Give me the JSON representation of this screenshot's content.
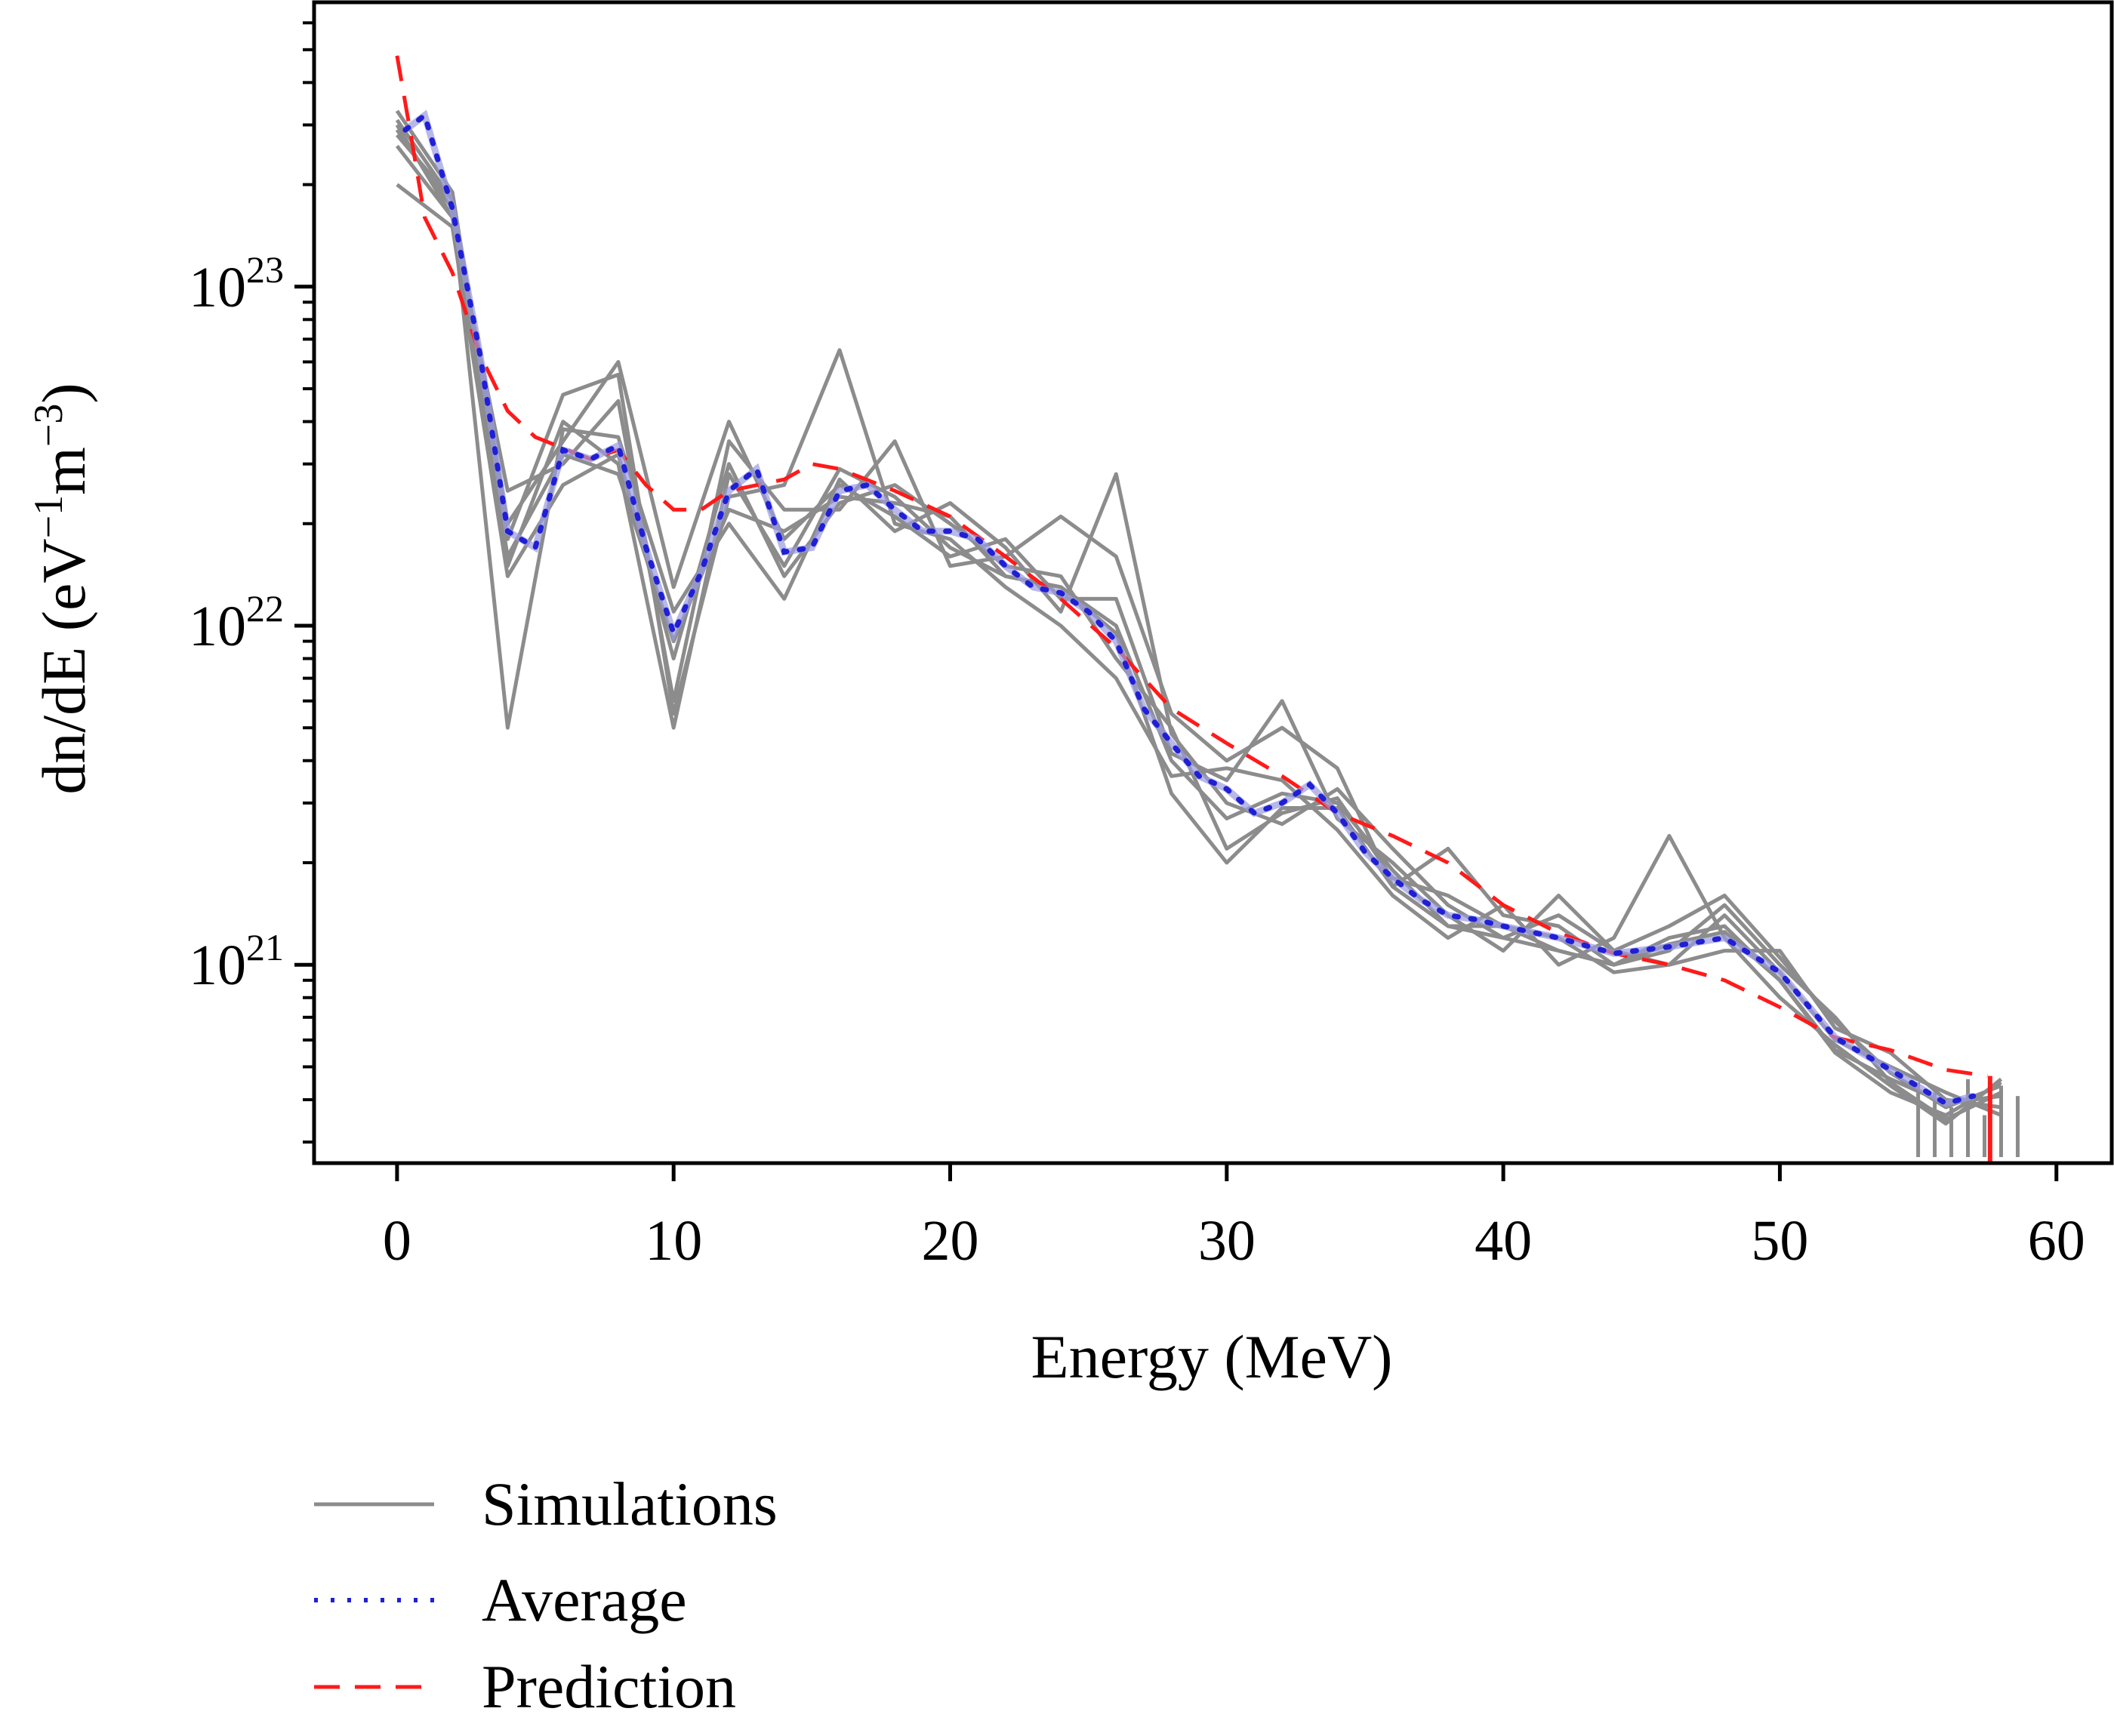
{
  "chart_data": {
    "type": "line",
    "title": "",
    "xlabel": "Energy (MeV)",
    "ylabel": "dn/dE (eV⁻¹m⁻³)",
    "ylabel_parts": {
      "main": "dn/dE (eV",
      "sup1": "−1",
      "mid": "m",
      "sup2": "−3",
      "end": ")"
    },
    "xlim": [
      -3,
      62
    ],
    "ylim": [
      2.6e+20,
      6.9e+23
    ],
    "yscale": "log",
    "xticks": [
      0,
      10,
      20,
      30,
      40,
      50,
      60
    ],
    "xtick_labels": [
      "0",
      "10",
      "20",
      "30",
      "40",
      "50",
      "60"
    ],
    "yticks": [
      1e+21,
      1e+22,
      1e+23
    ],
    "ytick_labels": [
      {
        "base": "10",
        "exp": "21"
      },
      {
        "base": "10",
        "exp": "22"
      },
      {
        "base": "10",
        "exp": "23"
      }
    ],
    "grid": false,
    "legend_position": "bottom-left, below plot",
    "colors": {
      "simulations": "#8c8c8c",
      "average": "#1f1fd6",
      "prediction": "#ff1a1a"
    },
    "simulations": {
      "name": "Simulations",
      "x": [
        0,
        2,
        4,
        6,
        8,
        10,
        12,
        14,
        16,
        18,
        20,
        22,
        24,
        26,
        28,
        30,
        32,
        34,
        36,
        38,
        40,
        42,
        44,
        46,
        48,
        50,
        52,
        54,
        56,
        58
      ],
      "series": [
        [
          3.1e+23,
          1.8e+23,
          1.5e+22,
          4e+22,
          3e+22,
          5e+21,
          2.8e+22,
          1.5e+22,
          2.9e+22,
          2.4e+22,
          1.7e+22,
          1.4e+22,
          1.3e+22,
          1e+22,
          4e+21,
          2.7e+21,
          3.2e+21,
          3e+21,
          1.9e+21,
          1.3e+21,
          1.2e+21,
          1.1e+21,
          1e+21,
          1.2e+21,
          1.3e+21,
          9e+20,
          5.5e+20,
          4.2e+20,
          3.6e+20,
          4.5e+20
        ],
        [
          2.6e+23,
          1.6e+23,
          2.5e+22,
          3e+22,
          4.6e+22,
          6e+21,
          3.5e+22,
          2.2e+22,
          2.2e+22,
          3.5e+22,
          1.5e+22,
          1.6e+22,
          2.1e+22,
          1.6e+22,
          5.5e+21,
          4e+21,
          5e+21,
          3.8e+21,
          1.7e+21,
          2.2e+21,
          1.4e+21,
          1.3e+21,
          1e+21,
          1.1e+21,
          1.5e+21,
          1e+21,
          7e+20,
          4.5e+20,
          3.5e+20,
          4.2e+20
        ],
        [
          2.9e+23,
          1.7e+23,
          5e+21,
          3.8e+22,
          3.6e+22,
          1.1e+22,
          2e+22,
          1.2e+22,
          2.7e+22,
          1.9e+22,
          2.3e+22,
          1.7e+22,
          1.1e+22,
          2.8e+22,
          4.8e+21,
          3e+21,
          2.6e+21,
          3.3e+21,
          2.2e+21,
          1.5e+21,
          1.2e+21,
          1.4e+21,
          1.1e+21,
          1e+21,
          1.1e+21,
          1.1e+21,
          6.5e+20,
          5.5e+20,
          4e+20,
          3.8e+20
        ],
        [
          3.3e+23,
          1.9e+23,
          1.8e+22,
          4.8e+22,
          5.5e+22,
          5.5e+21,
          2.4e+22,
          2.6e+22,
          6.5e+22,
          2e+22,
          1.8e+22,
          1.3e+22,
          1e+22,
          7e+21,
          3.6e+21,
          3.8e+21,
          3.5e+21,
          2.5e+21,
          1.6e+21,
          1.2e+21,
          1.5e+21,
          1e+21,
          1.2e+21,
          2.4e+21,
          1.2e+21,
          8e+20,
          5.8e+20,
          4.4e+20,
          3.4e+20,
          4.6e+20
        ],
        [
          2e+23,
          1.5e+23,
          1.4e+22,
          2.6e+22,
          3.2e+22,
          8e+21,
          3e+22,
          1.4e+22,
          2.3e+22,
          2.6e+22,
          2e+22,
          1.5e+22,
          1.4e+22,
          8e+21,
          5e+21,
          2.2e+21,
          2.8e+21,
          3.1e+21,
          1.8e+21,
          1.6e+21,
          1.3e+21,
          1.2e+21,
          9.5e+20,
          1e+21,
          1.4e+21,
          9.5e+20,
          6e+20,
          5e+20,
          4.2e+20,
          3.6e+20
        ],
        [
          2.8e+23,
          1.8e+23,
          2e+22,
          3.5e+22,
          6e+22,
          1.3e+22,
          4e+22,
          1.8e+22,
          2.6e+22,
          2.1e+22,
          1.6e+22,
          1.8e+22,
          1.2e+22,
          1.2e+22,
          4.2e+21,
          3.5e+21,
          6e+21,
          2.7e+21,
          2e+21,
          1.4e+21,
          1.1e+21,
          1.6e+21,
          1.1e+21,
          1.3e+21,
          1.6e+21,
          1.05e+21,
          6.8e+20,
          4.8e+20,
          3.8e+20,
          4.4e+20
        ],
        [
          3e+23,
          1.6e+23,
          1.6e+22,
          3.2e+22,
          2.8e+22,
          9e+21,
          2.2e+22,
          1.9e+22,
          2.4e+22,
          2.3e+22,
          2.1e+22,
          1.4e+22,
          1.3e+22,
          9.5e+21,
          3.2e+21,
          2e+21,
          2.9e+21,
          2.9e+21,
          1.7e+21,
          1.3e+21,
          1.3e+21,
          1.1e+21,
          1e+21,
          1.15e+21,
          1.25e+21,
          9e+20,
          5.6e+20,
          4.6e+20,
          3.9e+20,
          4.1e+20
        ]
      ]
    },
    "average": {
      "name": "Average",
      "x": [
        0.3,
        1,
        2,
        3,
        4,
        5,
        6,
        7,
        8,
        9,
        10,
        11,
        12,
        13,
        14,
        15,
        16,
        17,
        18,
        19,
        20,
        21,
        22,
        23,
        24,
        25,
        26,
        27,
        28,
        29,
        30,
        31,
        32,
        33,
        34,
        35,
        36,
        37,
        38,
        39,
        40,
        42,
        44,
        46,
        48,
        50,
        52,
        54,
        56,
        57
      ],
      "y": [
        2.9e+23,
        3.2e+23,
        1.7e+23,
        6.3e+22,
        1.9e+22,
        1.7e+22,
        3.3e+22,
        3.1e+22,
        3.4e+22,
        1.7e+22,
        9.5e+21,
        1.44e+22,
        2.5e+22,
        2.9e+22,
        1.65e+22,
        1.7e+22,
        2.5e+22,
        2.6e+22,
        2.2e+22,
        1.9e+22,
        1.9e+22,
        1.8e+22,
        1.5e+22,
        1.3e+22,
        1.25e+22,
        1.1e+22,
        9e+21,
        5.7e+21,
        4.5e+21,
        3.6e+21,
        3.3e+21,
        2.8e+21,
        3e+21,
        3.4e+21,
        2.8e+21,
        2.15e+21,
        1.8e+21,
        1.56e+21,
        1.4e+21,
        1.36e+21,
        1.3e+21,
        1.2e+21,
        1.08e+21,
        1.13e+21,
        1.2e+21,
        9.5e+20,
        6.1e+20,
        4.9e+20,
        3.9e+20,
        4.1e+20
      ]
    },
    "prediction": {
      "name": "Prediction",
      "x": [
        0,
        0.5,
        1,
        2,
        3,
        4,
        5,
        7,
        8,
        9,
        10,
        11,
        12,
        14,
        15,
        16,
        18,
        20,
        22,
        24,
        26,
        28,
        30,
        32,
        34,
        36,
        38,
        40,
        42,
        44,
        46,
        48,
        50,
        52,
        54,
        56,
        57.5
      ],
      "y": [
        4.8e+23,
        2.8e+23,
        1.6e+23,
        1.1e+23,
        6.3e+22,
        4.3e+22,
        3.6e+22,
        3.1e+22,
        3.3e+22,
        2.6e+22,
        2.2e+22,
        2.2e+22,
        2.5e+22,
        2.7e+22,
        3e+22,
        2.9e+22,
        2.5e+22,
        2.1e+22,
        1.6e+22,
        1.2e+22,
        8.6e+21,
        5.7e+21,
        4.5e+21,
        3.6e+21,
        2.8e+21,
        2.4e+21,
        2e+21,
        1.5e+21,
        1.24e+21,
        1.08e+21,
        1e+21,
        9e+20,
        7.5e+20,
        6.1e+20,
        5.6e+20,
        4.9e+20,
        4.7e+20
      ],
      "end_marker_x": 57.6
    }
  },
  "legend": [
    {
      "label": "Simulations",
      "style": "solid"
    },
    {
      "label": "Average",
      "style": "dotted"
    },
    {
      "label": "Prediction",
      "style": "dashed"
    }
  ]
}
